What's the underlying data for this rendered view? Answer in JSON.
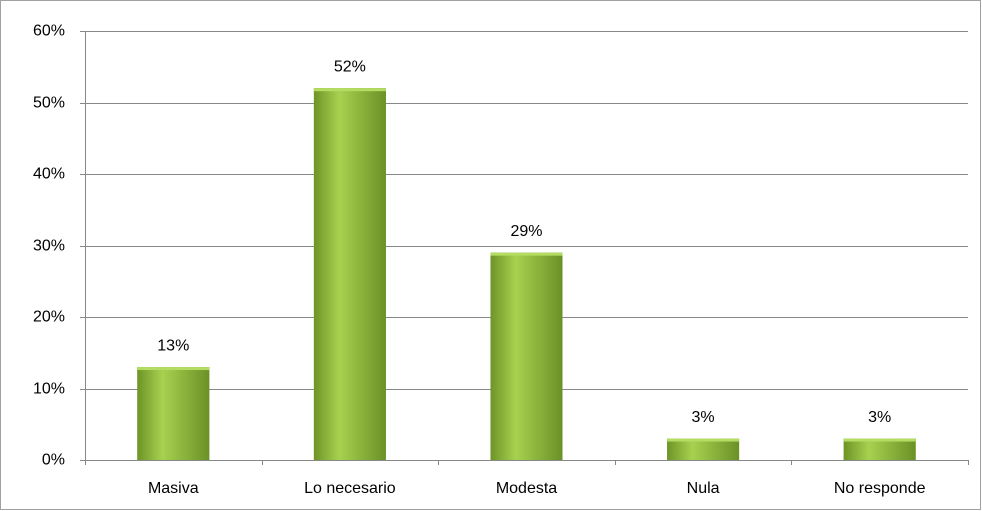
{
  "chart_data": {
    "type": "bar",
    "categories": [
      "Masiva",
      "Lo necesario",
      "Modesta",
      "Nula",
      "No responde"
    ],
    "values": [
      13,
      52,
      29,
      3,
      3
    ],
    "value_labels": [
      "13%",
      "52%",
      "29%",
      "3%",
      "3%"
    ],
    "color": "#8db83c",
    "ylim": [
      0,
      60
    ],
    "yticks": [
      {
        "value": 0,
        "label": "0%"
      },
      {
        "value": 10,
        "label": "10%"
      },
      {
        "value": 20,
        "label": "20%"
      },
      {
        "value": 30,
        "label": "30%"
      },
      {
        "value": 40,
        "label": "40%"
      },
      {
        "value": 50,
        "label": "50%"
      },
      {
        "value": 60,
        "label": "60%"
      }
    ],
    "grid": true
  }
}
